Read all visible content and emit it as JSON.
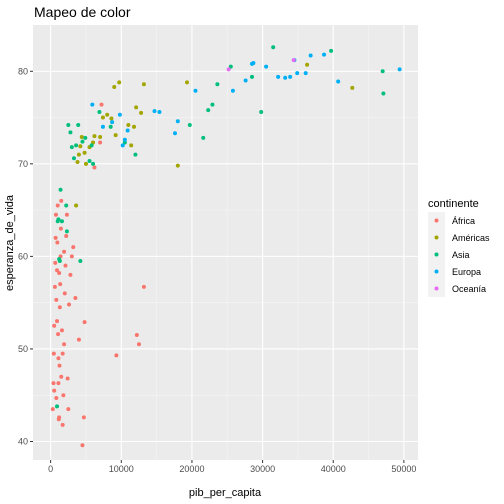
{
  "chart_data": {
    "type": "scatter",
    "title": "Mapeo de color",
    "xlabel": "pib_per_capita",
    "ylabel": "esperanza_de_vida",
    "xlim": [
      -2500,
      52000
    ],
    "ylim": [
      38,
      85
    ],
    "xticks": [
      0,
      10000,
      20000,
      30000,
      40000,
      50000
    ],
    "xtick_labels": [
      "0",
      "10000",
      "20000",
      "30000",
      "40000",
      "50000"
    ],
    "yticks": [
      40,
      50,
      60,
      70,
      80
    ],
    "ytick_labels": [
      "40",
      "50",
      "60",
      "70",
      "80"
    ],
    "grid": true,
    "legend": {
      "title": "continente",
      "position": "right"
    },
    "series": [
      {
        "name": "África",
        "color": "#F8766D",
        "points": [
          [
            300,
            43.5
          ],
          [
            400,
            46.3
          ],
          [
            450,
            49.5
          ],
          [
            500,
            52.5
          ],
          [
            600,
            56.7
          ],
          [
            650,
            59.3
          ],
          [
            700,
            62.0
          ],
          [
            750,
            64.5
          ],
          [
            500,
            45.5
          ],
          [
            800,
            55.3
          ],
          [
            900,
            58.5
          ],
          [
            950,
            61.5
          ],
          [
            1000,
            65.5
          ],
          [
            1050,
            51.6
          ],
          [
            1100,
            46.3
          ],
          [
            1150,
            42.4
          ],
          [
            1200,
            42.6
          ],
          [
            1250,
            48.2
          ],
          [
            1300,
            54.5
          ],
          [
            1350,
            57.0
          ],
          [
            1400,
            60.0
          ],
          [
            1450,
            63.0
          ],
          [
            1500,
            66.0
          ],
          [
            1600,
            52.0
          ],
          [
            1700,
            49.5
          ],
          [
            1800,
            45.0
          ],
          [
            1900,
            50.5
          ],
          [
            2000,
            56.0
          ],
          [
            2100,
            59.0
          ],
          [
            2200,
            62.2
          ],
          [
            2300,
            64.5
          ],
          [
            2400,
            46.8
          ],
          [
            2600,
            54.8
          ],
          [
            2800,
            58.0
          ],
          [
            3000,
            60.0
          ],
          [
            3200,
            61.0
          ],
          [
            3500,
            55.5
          ],
          [
            4000,
            51.0
          ],
          [
            4500,
            39.6
          ],
          [
            4700,
            42.6
          ],
          [
            4800,
            52.9
          ],
          [
            6200,
            69.6
          ],
          [
            7000,
            72.3
          ],
          [
            7200,
            76.4
          ],
          [
            9300,
            49.3
          ],
          [
            12200,
            51.5
          ],
          [
            12500,
            50.5
          ],
          [
            13200,
            56.7
          ],
          [
            800,
            44.7
          ],
          [
            1100,
            49.0
          ],
          [
            1500,
            47.0
          ],
          [
            1200,
            58.2
          ],
          [
            900,
            53.0
          ],
          [
            2500,
            43.5
          ],
          [
            1700,
            41.8
          ],
          [
            1900,
            60.5
          ]
        ]
      },
      {
        "name": "Américas",
        "color": "#A3A500",
        "points": [
          [
            3600,
            65.5
          ],
          [
            3800,
            70.2
          ],
          [
            4000,
            71.0
          ],
          [
            4200,
            71.9
          ],
          [
            4400,
            72.9
          ],
          [
            4800,
            71.2
          ],
          [
            5000,
            70.0
          ],
          [
            5500,
            71.8
          ],
          [
            6000,
            72.3
          ],
          [
            6200,
            73.0
          ],
          [
            7000,
            72.9
          ],
          [
            7400,
            75.0
          ],
          [
            8000,
            75.3
          ],
          [
            8600,
            74.9
          ],
          [
            9000,
            78.3
          ],
          [
            9200,
            73.1
          ],
          [
            9700,
            78.8
          ],
          [
            11000,
            74.2
          ],
          [
            11400,
            72.0
          ],
          [
            11800,
            74.0
          ],
          [
            12100,
            76.1
          ],
          [
            12800,
            75.5
          ],
          [
            13200,
            78.6
          ],
          [
            18000,
            69.8
          ],
          [
            19300,
            78.8
          ],
          [
            36300,
            80.7
          ],
          [
            42700,
            78.2
          ]
        ]
      },
      {
        "name": "Asia",
        "color": "#00BF7D",
        "points": [
          [
            900,
            43.8
          ],
          [
            1000,
            63.8
          ],
          [
            1100,
            64.0
          ],
          [
            1200,
            59.7
          ],
          [
            1300,
            59.5
          ],
          [
            1400,
            67.2
          ],
          [
            1600,
            63.8
          ],
          [
            2200,
            65.5
          ],
          [
            2300,
            62.7
          ],
          [
            2500,
            74.2
          ],
          [
            2800,
            73.4
          ],
          [
            3000,
            71.8
          ],
          [
            3300,
            70.6
          ],
          [
            3600,
            72.0
          ],
          [
            3900,
            74.2
          ],
          [
            4200,
            59.5
          ],
          [
            4500,
            72.4
          ],
          [
            4900,
            72.8
          ],
          [
            5500,
            70.3
          ],
          [
            5800,
            72.0
          ],
          [
            6000,
            70.0
          ],
          [
            6900,
            75.6
          ],
          [
            8500,
            74.0
          ],
          [
            10500,
            72.3
          ],
          [
            12000,
            71.0
          ],
          [
            19700,
            74.2
          ],
          [
            21600,
            72.8
          ],
          [
            22300,
            75.8
          ],
          [
            22900,
            76.4
          ],
          [
            23600,
            78.6
          ],
          [
            25500,
            80.5
          ],
          [
            28500,
            79.4
          ],
          [
            29800,
            75.6
          ],
          [
            31500,
            82.6
          ],
          [
            39700,
            82.2
          ],
          [
            47000,
            80.0
          ],
          [
            47100,
            77.6
          ]
        ]
      },
      {
        "name": "Europa",
        "color": "#00B0F6",
        "points": [
          [
            5900,
            76.4
          ],
          [
            7400,
            74.0
          ],
          [
            8700,
            74.5
          ],
          [
            9800,
            75.3
          ],
          [
            10200,
            72.0
          ],
          [
            10500,
            72.6
          ],
          [
            10900,
            73.6
          ],
          [
            14700,
            75.7
          ],
          [
            15400,
            75.6
          ],
          [
            17600,
            73.3
          ],
          [
            18000,
            74.6
          ],
          [
            20500,
            77.9
          ],
          [
            25800,
            77.9
          ],
          [
            27600,
            79.0
          ],
          [
            28500,
            80.8
          ],
          [
            28700,
            80.9
          ],
          [
            30500,
            80.5
          ],
          [
            32200,
            79.4
          ],
          [
            33200,
            79.3
          ],
          [
            33900,
            79.4
          ],
          [
            34500,
            81.2
          ],
          [
            34900,
            79.8
          ],
          [
            36100,
            79.8
          ],
          [
            36800,
            81.7
          ],
          [
            38700,
            81.8
          ],
          [
            40700,
            78.9
          ],
          [
            49400,
            80.2
          ]
        ]
      },
      {
        "name": "Oceanía",
        "color": "#E76BF3",
        "points": [
          [
            25200,
            80.2
          ],
          [
            34400,
            81.2
          ]
        ]
      }
    ]
  }
}
